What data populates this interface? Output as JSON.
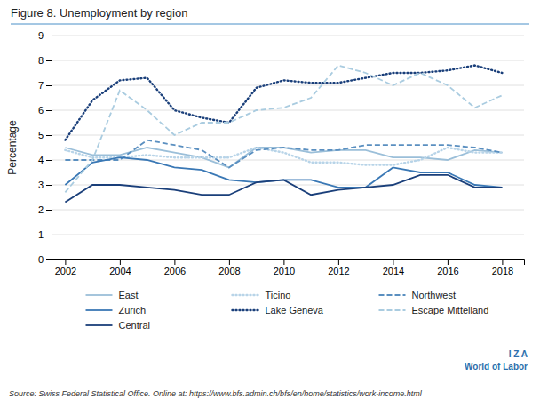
{
  "chart_data": {
    "type": "line",
    "title": "Figure 8. Unemployment by region",
    "ylabel": "Percentage",
    "annotations": [
      "Source: Swiss Federal Statistical Office. Online at: https://www.bfs.admin.ch/bfs/en/home/statistics/work-income.html",
      "I Z A",
      "World of Labor"
    ],
    "x": [
      2002,
      2003,
      2004,
      2005,
      2006,
      2007,
      2008,
      2009,
      2010,
      2011,
      2012,
      2013,
      2014,
      2015,
      2016,
      2017,
      2018
    ],
    "series": [
      {
        "name": "East",
        "color": "#9bbfd9",
        "line_style": "solid",
        "values": [
          4.5,
          4.2,
          4.2,
          4.5,
          4.3,
          4.1,
          3.7,
          4.5,
          4.5,
          4.3,
          4.4,
          4.4,
          4.1,
          4.1,
          4.0,
          4.4,
          4.3
        ]
      },
      {
        "name": "Ticino",
        "color": "#b8d4e8",
        "line_style": "dotted",
        "values": [
          4.4,
          4.1,
          4.1,
          4.2,
          4.1,
          4.1,
          4.1,
          4.5,
          4.3,
          3.9,
          3.9,
          3.8,
          3.8,
          4.0,
          4.5,
          4.3,
          4.3
        ]
      },
      {
        "name": "Northwest",
        "color": "#5a8fc0",
        "line_style": "dashed",
        "values": [
          4.0,
          4.0,
          4.0,
          4.8,
          4.6,
          4.4,
          3.7,
          4.4,
          4.5,
          4.4,
          4.4,
          4.6,
          4.6,
          4.6,
          4.6,
          4.5,
          4.3
        ]
      },
      {
        "name": "Zurich",
        "color": "#3a78b5",
        "line_style": "solid",
        "values": [
          3.0,
          3.9,
          4.1,
          4.0,
          3.7,
          3.6,
          3.2,
          3.1,
          3.2,
          3.2,
          2.9,
          2.9,
          3.7,
          3.5,
          3.5,
          3.0,
          2.9
        ]
      },
      {
        "name": "Lake Geneva",
        "color": "#1a3f7a",
        "line_style": "dotted",
        "values": [
          4.8,
          6.4,
          7.2,
          7.3,
          6.0,
          5.7,
          5.5,
          6.9,
          7.2,
          7.1,
          7.1,
          7.3,
          7.5,
          7.5,
          7.6,
          7.8,
          7.5
        ]
      },
      {
        "name": "Escape Mittelland",
        "color": "#aacce0",
        "line_style": "dashed",
        "values": [
          2.7,
          4.0,
          6.8,
          6.0,
          5.0,
          5.5,
          5.5,
          6.0,
          6.1,
          6.5,
          7.8,
          7.5,
          7.0,
          7.5,
          7.0,
          6.1,
          6.6
        ]
      },
      {
        "name": "Central",
        "color": "#1a3f7a",
        "line_style": "solid",
        "values": [
          2.3,
          3.0,
          3.0,
          2.9,
          2.8,
          2.6,
          2.6,
          3.1,
          3.2,
          2.6,
          2.8,
          2.9,
          3.0,
          3.4,
          3.4,
          2.9,
          2.9
        ]
      }
    ],
    "xlim": [
      2001.5,
      2018.8
    ],
    "xticks": [
      2002,
      2004,
      2006,
      2008,
      2010,
      2012,
      2014,
      2016,
      2018
    ],
    "ylim": [
      0,
      9
    ],
    "yticks": [
      0,
      1,
      2,
      3,
      4,
      5,
      6,
      7,
      8,
      9
    ],
    "grid": true,
    "legend": "bottom"
  }
}
